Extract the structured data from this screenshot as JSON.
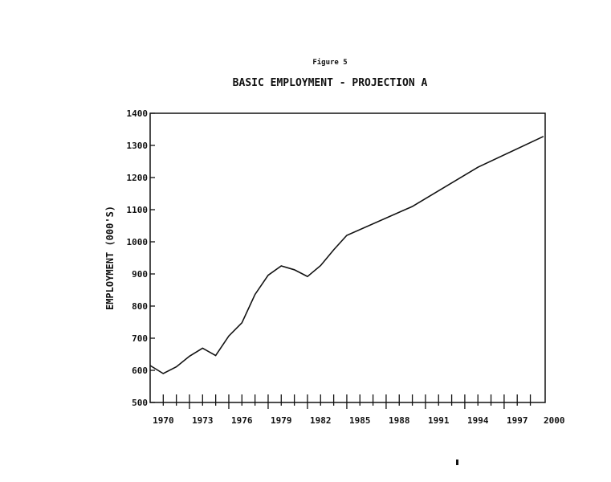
{
  "figure_label": "Figure 5",
  "chart_data": {
    "type": "line",
    "title": "BASIC EMPLOYMENT - PROJECTION A",
    "xlabel": "",
    "ylabel": "EMPLOYMENT (000'S)",
    "xlim": [
      1969,
      1999
    ],
    "ylim": [
      500,
      1400
    ],
    "x_ticks": [
      "1970",
      "1973",
      "1976",
      "1979",
      "1982",
      "1985",
      "1988",
      "1991",
      "1994",
      "1997",
      "2000"
    ],
    "y_ticks": [
      "500",
      "600",
      "700",
      "800",
      "900",
      "1000",
      "1100",
      "1200",
      "1300",
      "1400"
    ],
    "grid": false,
    "series": [
      {
        "name": "Basic Employment",
        "x": [
          1969,
          1970,
          1971,
          1972,
          1973,
          1974,
          1975,
          1976,
          1977,
          1978,
          1979,
          1980,
          1981,
          1982,
          1983,
          1984,
          1989,
          1994,
          1999
        ],
        "y": [
          615,
          590,
          611,
          644,
          669,
          646,
          707,
          748,
          836,
          896,
          925,
          913,
          892,
          926,
          975,
          1020,
          1110,
          1232,
          1328
        ]
      }
    ]
  }
}
